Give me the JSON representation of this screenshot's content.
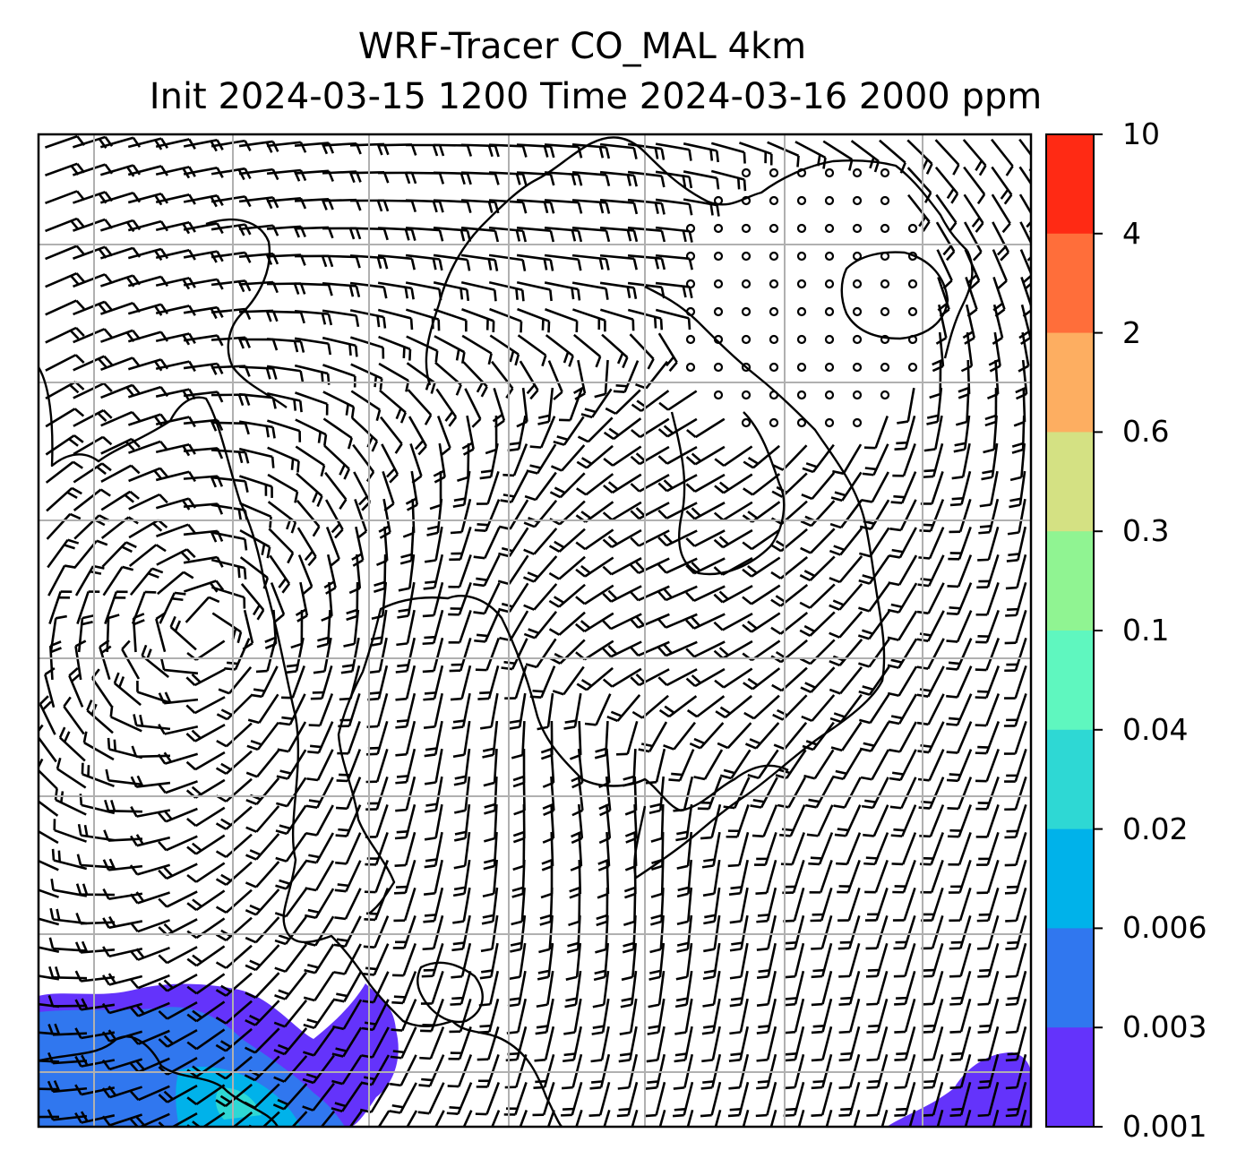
{
  "title": {
    "line1": "WRF-Tracer CO_MAL 4km",
    "line2": "Init 2024-03-15 1200 Time 2024-03-16 2000 ppm"
  },
  "colorbar": {
    "ticks": [
      "10",
      "4",
      "2",
      "0.6",
      "0.3",
      "0.1",
      "0.04",
      "0.02",
      "0.006",
      "0.003",
      "0.001"
    ],
    "colors": [
      "#ff2a14",
      "#ff6e3a",
      "#fdae61",
      "#d4e183",
      "#90f492",
      "#5ff7bf",
      "#2ed8d4",
      "#00b2ea",
      "#3077ef",
      "#6433fb"
    ]
  },
  "map": {
    "tracer_color_low": "#6433fb",
    "tracer_color_mid": "#3077ef",
    "tracer_color_high": "#00b2ea",
    "tracer_color_peak": "#2ed8d4",
    "gridline_color": "#b0b0b0",
    "coastline_color": "#000000"
  }
}
